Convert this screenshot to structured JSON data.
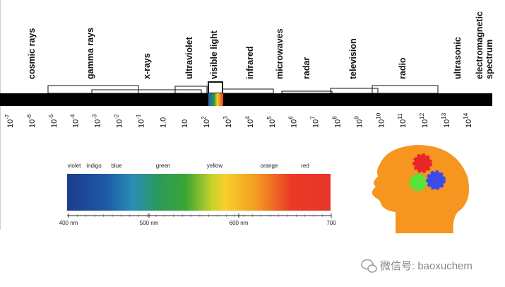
{
  "spectrum": {
    "bands": [
      "cosmic rays",
      "gamma rays",
      "x-rays",
      "ultraviolet",
      "visible light",
      "infrared",
      "microwaves",
      "radar",
      "television",
      "radio",
      "ultrasonic"
    ],
    "title": [
      "electromagnetic",
      "spectrum"
    ],
    "ticks": [
      {
        "base": "10",
        "exp": "-7"
      },
      {
        "base": "10",
        "exp": "-6"
      },
      {
        "base": "10",
        "exp": "-5"
      },
      {
        "base": "10",
        "exp": "-4"
      },
      {
        "base": "10",
        "exp": "-3"
      },
      {
        "base": "10",
        "exp": "-2"
      },
      {
        "base": "10",
        "exp": "-1"
      },
      {
        "base": "1.0"
      },
      {
        "base": "10"
      },
      {
        "base": "10",
        "exp": "2"
      },
      {
        "base": "10",
        "exp": "3"
      },
      {
        "base": "10",
        "exp": "4"
      },
      {
        "base": "10",
        "exp": "5"
      },
      {
        "base": "10",
        "exp": "6"
      },
      {
        "base": "10",
        "exp": "7"
      },
      {
        "base": "10",
        "exp": "8"
      },
      {
        "base": "10",
        "exp": "9"
      },
      {
        "base": "10",
        "exp": "10"
      },
      {
        "base": "10",
        "exp": "11"
      },
      {
        "base": "10",
        "exp": "12"
      },
      {
        "base": "10",
        "exp": "13"
      },
      {
        "base": "10",
        "exp": "14"
      }
    ]
  },
  "visible": {
    "colors": [
      "violet",
      "indigo",
      "blue",
      "green",
      "yellow",
      "orange",
      "red"
    ],
    "scale": [
      "400 nm",
      "500 nm",
      "600 nm",
      "700"
    ]
  },
  "watermark": "微信号: baoxuchem"
}
